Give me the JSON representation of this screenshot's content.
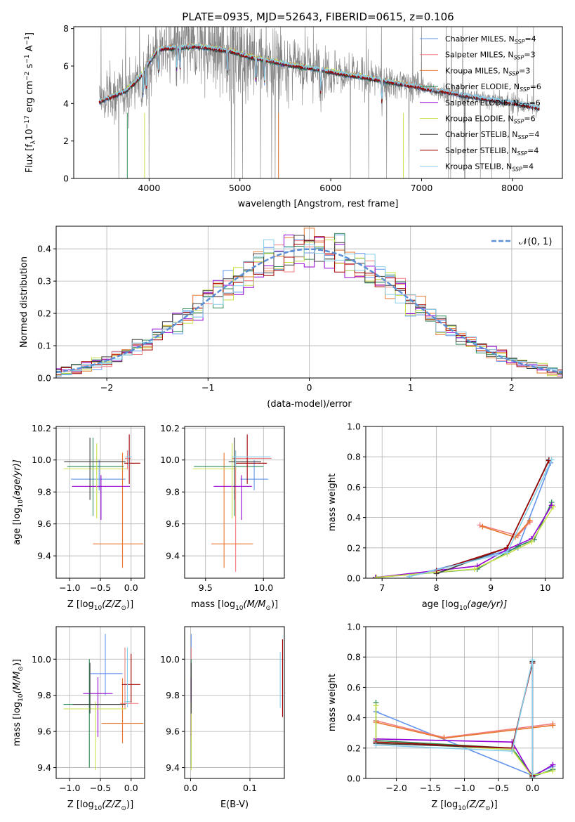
{
  "chart_data": [
    {
      "type": "line",
      "title": "PLATE=0935, MJD=52643, FIBERID=0615, z=0.106",
      "xlabel": "wavelength [Angstrom, rest frame]",
      "ylabel_parts": [
        "Flux [f",
        "λ",
        "10",
        "−17",
        " erg cm",
        "−2",
        " s",
        "−1",
        " A",
        "−1",
        "]"
      ],
      "xlim": [
        3170,
        8550
      ],
      "ylim": [
        0,
        8.1
      ],
      "xticks": [
        "4000",
        "5000",
        "6000",
        "7000",
        "8000"
      ],
      "yticks": [
        "0",
        "2",
        "4",
        "6",
        "8"
      ],
      "data_color": "#808080",
      "models": [
        {
          "name": "Chabrier MILES, N",
          "sub": "SSP",
          "n": "=4",
          "color": "#6495ed"
        },
        {
          "name": "Salpeter MILES, N",
          "sub": "SSP",
          "n": "=3",
          "color": "#f08080"
        },
        {
          "name": "Kroupa MILES, N",
          "sub": "SSP",
          "n": "=3",
          "color": "#e8772e"
        },
        {
          "name": "Chabrier ELODIE, N",
          "sub": "SSP",
          "n": "=6",
          "color": "#2e8b57"
        },
        {
          "name": "Salpeter ELODIE, N",
          "sub": "SSP",
          "n": "=6",
          "color": "#9400d3"
        },
        {
          "name": "Kroupa ELODIE, N",
          "sub": "SSP",
          "n": "=6",
          "color": "#c8e04a"
        },
        {
          "name": "Chabrier STELIB, N",
          "sub": "SSP",
          "n": "=4",
          "color": "#404040"
        },
        {
          "name": "Salpeter STELIB, N",
          "sub": "SSP",
          "n": "=4",
          "color": "#a00000"
        },
        {
          "name": "Kroupa STELIB, N",
          "sub": "SSP",
          "n": "=4",
          "color": "#87ceeb"
        }
      ],
      "continuum": {
        "x": [
          3450,
          3600,
          3750,
          3900,
          4000,
          4100,
          4300,
          4500,
          4700,
          4900,
          5100,
          5300,
          5500,
          5700,
          5900,
          6100,
          6300,
          6500,
          6700,
          6900,
          7100,
          7300,
          7500,
          7700,
          7900,
          8100,
          8300
        ],
        "y": [
          4.1,
          4.4,
          4.7,
          5.4,
          6.2,
          6.9,
          7.0,
          7.05,
          6.95,
          6.8,
          6.5,
          6.3,
          6.1,
          5.95,
          5.8,
          5.6,
          5.45,
          5.3,
          5.1,
          4.95,
          4.75,
          4.6,
          4.4,
          4.25,
          4.1,
          3.95,
          3.75
        ]
      }
    },
    {
      "type": "step",
      "xlabel": "(data-model)/error",
      "ylabel": "Normed distribution",
      "xlim": [
        -2.5,
        2.5
      ],
      "ylim": [
        0,
        0.47
      ],
      "xticks": [
        "−2",
        "−1",
        "0",
        "1",
        "2"
      ],
      "yticks": [
        "0.0",
        "0.1",
        "0.2",
        "0.3",
        "0.4"
      ],
      "bin_width": 0.1,
      "gaussian_label": "𝒩(0, 1)",
      "gaussian_color": "#5b8fd6"
    },
    {
      "type": "errorbar",
      "xlabel_parts": [
        "Z [log",
        "10",
        "(Z/Z",
        "⊙",
        ")]"
      ],
      "ylabel_parts": [
        "age  [log",
        "10",
        "(age/yr)]"
      ],
      "xlim": [
        -1.22,
        0.22
      ],
      "ylim": [
        9.26,
        10.21
      ],
      "xticks": [
        "−1.0",
        "−0.5",
        "0.0"
      ],
      "yticks": [
        "9.4",
        "9.6",
        "9.8",
        "10.0",
        "10.2"
      ],
      "points": [
        {
          "model": 0,
          "x": -0.52,
          "xerr": [
            0.46,
            0.43
          ],
          "y": 9.88,
          "yerr": [
            0.07,
            0.12
          ]
        },
        {
          "model": 1,
          "x": -0.06,
          "xerr": [
            0.04,
            0.05
          ],
          "y": 10.01,
          "yerr": [
            0.07,
            0.05
          ]
        },
        {
          "model": 2,
          "x": -0.14,
          "xerr": [
            0.48,
            0.34
          ],
          "y": 9.475,
          "yerr": [
            0.15,
            0.57
          ]
        },
        {
          "model": 3,
          "x": -0.62,
          "xerr": [
            0.42,
            0.5
          ],
          "y": 9.96,
          "yerr": [
            0.31,
            0.18
          ]
        },
        {
          "model": 4,
          "x": -0.49,
          "xerr": [
            0.47,
            0.47
          ],
          "y": 9.835,
          "yerr": [
            0.21,
            0.07
          ]
        },
        {
          "model": 5,
          "x": -0.56,
          "xerr": [
            0.54,
            0.49
          ],
          "y": 9.945,
          "yerr": [
            0.31,
            0.16
          ]
        },
        {
          "model": 6,
          "x": -0.67,
          "xerr": [
            0.42,
            0.58
          ],
          "y": 9.99,
          "yerr": [
            0.24,
            0.15
          ]
        },
        {
          "model": 7,
          "x": -0.03,
          "xerr": [
            0.08,
            0.18
          ],
          "y": 9.98,
          "yerr": [
            0.13,
            0.18
          ]
        },
        {
          "model": 8,
          "x": -0.04,
          "xerr": [
            0.05,
            0.05
          ],
          "y": 10.02,
          "yerr": [
            0.06,
            0.04
          ]
        }
      ]
    },
    {
      "type": "errorbar",
      "xlabel_parts": [
        "mass [log",
        "10",
        "(M/M",
        "⊙",
        ")]"
      ],
      "ylabel": "",
      "xlim": [
        9.32,
        10.18
      ],
      "ylim": [
        9.26,
        10.21
      ],
      "xticks": [
        "9.5",
        "10.0"
      ],
      "yticks": [
        "9.4",
        "9.6",
        "9.8",
        "10.0",
        "10.2"
      ],
      "points": [
        {
          "model": 0,
          "x": 9.92,
          "xerr": [
            0.12,
            0.12
          ],
          "y": 9.88,
          "yerr": [
            0.07,
            0.12
          ]
        },
        {
          "model": 1,
          "x": 9.76,
          "xerr": [
            0.03,
            0.31
          ],
          "y": 10.01,
          "yerr": [
            0.71,
            0.05
          ]
        },
        {
          "model": 2,
          "x": 9.66,
          "xerr": [
            0.11,
            0.25
          ],
          "y": 9.475,
          "yerr": [
            0.15,
            0.57
          ]
        },
        {
          "model": 3,
          "x": 9.75,
          "xerr": [
            0.35,
            0.25
          ],
          "y": 9.96,
          "yerr": [
            0.31,
            0.18
          ]
        },
        {
          "model": 4,
          "x": 9.81,
          "xerr": [
            0.24,
            0.09
          ],
          "y": 9.835,
          "yerr": [
            0.21,
            0.07
          ]
        },
        {
          "model": 5,
          "x": 9.73,
          "xerr": [
            0.34,
            0.04
          ],
          "y": 9.945,
          "yerr": [
            0.31,
            0.16
          ]
        },
        {
          "model": 6,
          "x": 9.75,
          "xerr": [
            0.05,
            0.23
          ],
          "y": 9.99,
          "yerr": [
            0.24,
            0.15
          ]
        },
        {
          "model": 7,
          "x": 9.86,
          "xerr": [
            0.1,
            0.17
          ],
          "y": 9.98,
          "yerr": [
            0.13,
            0.18
          ]
        },
        {
          "model": 8,
          "x": 9.76,
          "xerr": [
            0.03,
            0.3
          ],
          "y": 10.02,
          "yerr": [
            0.06,
            0.04
          ]
        }
      ]
    },
    {
      "type": "line",
      "xlabel_parts": [
        "age  [log",
        "10",
        "(age/yr)]"
      ],
      "ylabel": "mass weight",
      "xlim": [
        6.7,
        10.33
      ],
      "ylim": [
        0,
        1.0
      ],
      "xticks": [
        "7",
        "8",
        "9",
        "10"
      ],
      "yticks": [
        "0.0",
        "0.2",
        "0.4",
        "0.6",
        "0.8",
        "1.0"
      ],
      "series": [
        {
          "model": 0,
          "x": [
            7.5,
            9.5,
            10.1
          ],
          "y": [
            0.01,
            0.2,
            0.76
          ]
        },
        {
          "model": 1,
          "x": [
            8.8,
            9.5,
            9.72
          ],
          "y": [
            0.35,
            0.28,
            0.37
          ]
        },
        {
          "model": 2,
          "x": [
            8.85,
            9.45,
            9.72
          ],
          "y": [
            0.34,
            0.27,
            0.38
          ]
        },
        {
          "model": 3,
          "x": [
            6.88,
            8.75,
            9.3,
            9.5,
            9.8,
            10.12
          ],
          "y": [
            0.005,
            0.06,
            0.17,
            0.21,
            0.255,
            0.5
          ]
        },
        {
          "model": 4,
          "x": [
            6.88,
            8.0,
            8.75,
            9.3,
            9.75,
            10.12
          ],
          "y": [
            0.005,
            0.05,
            0.08,
            0.19,
            0.26,
            0.48
          ]
        },
        {
          "model": 5,
          "x": [
            6.9,
            8.0,
            8.7,
            9.3,
            9.75,
            10.15
          ],
          "y": [
            0.005,
            0.04,
            0.06,
            0.16,
            0.24,
            0.47
          ]
        },
        {
          "model": 6,
          "x": [
            8.0,
            9.3,
            10.07
          ],
          "y": [
            0.03,
            0.2,
            0.78
          ]
        },
        {
          "model": 7,
          "x": [
            8.0,
            9.3,
            10.07
          ],
          "y": [
            0.05,
            0.2,
            0.775
          ]
        },
        {
          "model": 8,
          "x": [
            7.5,
            9.3,
            10.12
          ],
          "y": [
            0.01,
            0.17,
            0.78
          ]
        }
      ]
    },
    {
      "type": "errorbar",
      "xlabel_parts": [
        "Z [log",
        "10",
        "(Z/Z",
        "⊙",
        ")]"
      ],
      "ylabel_parts": [
        "mass [log",
        "10",
        "(M/M",
        "⊙",
        ")]"
      ],
      "xlim": [
        -1.22,
        0.22
      ],
      "ylim": [
        9.34,
        10.18
      ],
      "xticks": [
        "−1.0",
        "−0.5",
        "0.0"
      ],
      "yticks": [
        "9.4",
        "9.6",
        "9.8",
        "10.0"
      ],
      "points": [
        {
          "model": 0,
          "x": -0.42,
          "xerr": [
            0.24,
            0.28
          ],
          "y": 9.92,
          "yerr": [
            0.12,
            0.22
          ]
        },
        {
          "model": 1,
          "x": -0.1,
          "xerr": [
            0.08,
            0.22
          ],
          "y": 9.755,
          "yerr": [
            0.03,
            0.31
          ]
        },
        {
          "model": 2,
          "x": -0.14,
          "xerr": [
            0.34,
            0.34
          ],
          "y": 9.645,
          "yerr": [
            0.11,
            0.25
          ]
        },
        {
          "model": 3,
          "x": -0.68,
          "xerr": [
            0.42,
            0.5
          ],
          "y": 9.75,
          "yerr": [
            0.35,
            0.25
          ]
        },
        {
          "model": 4,
          "x": -0.54,
          "xerr": [
            0.24,
            0.24
          ],
          "y": 9.81,
          "yerr": [
            0.24,
            0.09
          ]
        },
        {
          "model": 5,
          "x": -0.58,
          "xerr": [
            0.52,
            0.5
          ],
          "y": 9.725,
          "yerr": [
            0.34,
            0.04
          ]
        },
        {
          "model": 6,
          "x": -0.67,
          "xerr": [
            0.28,
            0.58
          ],
          "y": 9.75,
          "yerr": [
            0.05,
            0.23
          ]
        },
        {
          "model": 7,
          "x": 0.0,
          "xerr": [
            0.15,
            0.15
          ],
          "y": 9.86,
          "yerr": [
            0.1,
            0.17
          ]
        },
        {
          "model": 8,
          "x": -0.06,
          "xerr": [
            0.05,
            0.05
          ],
          "y": 9.765,
          "yerr": [
            0.03,
            0.3
          ]
        }
      ]
    },
    {
      "type": "errorbar",
      "xlabel": "E(B-V)",
      "ylabel": "",
      "xlim": [
        -0.01,
        0.158
      ],
      "ylim": [
        9.34,
        10.18
      ],
      "xticks": [
        "0.0",
        "0.1"
      ],
      "yticks": [
        "9.4",
        "9.6",
        "9.8",
        "10.0"
      ],
      "points": [
        {
          "model": 0,
          "x": 0.001,
          "xerr": [
            0,
            0
          ],
          "y": 9.92,
          "yerr": [
            0.12,
            0.22
          ]
        },
        {
          "model": 1,
          "x": 0.001,
          "xerr": [
            0,
            0
          ],
          "y": 9.755,
          "yerr": [
            0.03,
            0.31
          ]
        },
        {
          "model": 2,
          "x": 0.001,
          "xerr": [
            0,
            0
          ],
          "y": 9.645,
          "yerr": [
            0.11,
            0.25
          ]
        },
        {
          "model": 3,
          "x": 0.001,
          "xerr": [
            0,
            0
          ],
          "y": 9.75,
          "yerr": [
            0.35,
            0.25
          ]
        },
        {
          "model": 4,
          "x": 0.001,
          "xerr": [
            0,
            0
          ],
          "y": 9.81,
          "yerr": [
            0.24,
            0.09
          ]
        },
        {
          "model": 5,
          "x": 0.001,
          "xerr": [
            0,
            0
          ],
          "y": 9.725,
          "yerr": [
            0.34,
            0.04
          ]
        },
        {
          "model": 6,
          "x": 0.001,
          "xerr": [
            0,
            0
          ],
          "y": 9.75,
          "yerr": [
            0.05,
            0.23
          ]
        },
        {
          "model": 7,
          "x": 0.155,
          "xerr": [
            0,
            0
          ],
          "y": 9.86,
          "yerr": [
            0.18,
            0.25
          ]
        },
        {
          "model": 8,
          "x": 0.151,
          "xerr": [
            0,
            0
          ],
          "y": 9.87,
          "yerr": [
            0.14,
            0.17
          ]
        }
      ]
    },
    {
      "type": "line",
      "xlabel_parts": [
        "Z [log",
        "10",
        "(Z/Z",
        "⊙",
        ")]"
      ],
      "ylabel": "mass weight",
      "xlim": [
        -2.45,
        0.45
      ],
      "ylim": [
        0,
        1.0
      ],
      "xticks": [
        "−2.0",
        "−1.5",
        "−1.0",
        "−0.5",
        "0.0"
      ],
      "yticks": [
        "0.0",
        "0.2",
        "0.4",
        "0.6",
        "0.8",
        "1.0"
      ],
      "series": [
        {
          "model": 0,
          "x": [
            -2.3,
            0.0,
            0.3
          ],
          "y": [
            0.44,
            0.02,
            0.08
          ]
        },
        {
          "model": 1,
          "x": [
            -2.3,
            -1.3,
            0.3
          ],
          "y": [
            0.38,
            0.27,
            0.36
          ]
        },
        {
          "model": 2,
          "x": [
            -2.3,
            -1.3,
            0.3
          ],
          "y": [
            0.37,
            0.265,
            0.35
          ]
        },
        {
          "model": 3,
          "x": [
            -2.3,
            -2.3,
            -0.3,
            0.0,
            0.0,
            0.3
          ],
          "y": [
            0.5,
            0.25,
            0.2,
            0.02,
            0.01,
            0.06
          ]
        },
        {
          "model": 4,
          "x": [
            -2.3,
            -0.3,
            0.0,
            0.3
          ],
          "y": [
            0.26,
            0.24,
            0.01,
            0.09
          ]
        },
        {
          "model": 5,
          "x": [
            -2.3,
            -2.3,
            -0.3,
            0.0,
            0.0,
            0.3
          ],
          "y": [
            0.48,
            0.24,
            0.19,
            0.01,
            0.02,
            0.05
          ]
        },
        {
          "model": 6,
          "x": [
            -2.3,
            -0.3,
            0.0,
            0.0
          ],
          "y": [
            0.23,
            0.2,
            0.77,
            0.01
          ]
        },
        {
          "model": 7,
          "x": [
            -2.3,
            -0.3,
            0.0,
            0.0
          ],
          "y": [
            0.24,
            0.2,
            0.76,
            0.02
          ]
        },
        {
          "model": 8,
          "x": [
            -2.3,
            -0.3,
            0.0,
            0.0
          ],
          "y": [
            0.22,
            0.18,
            0.78,
            0.0
          ]
        }
      ]
    }
  ]
}
